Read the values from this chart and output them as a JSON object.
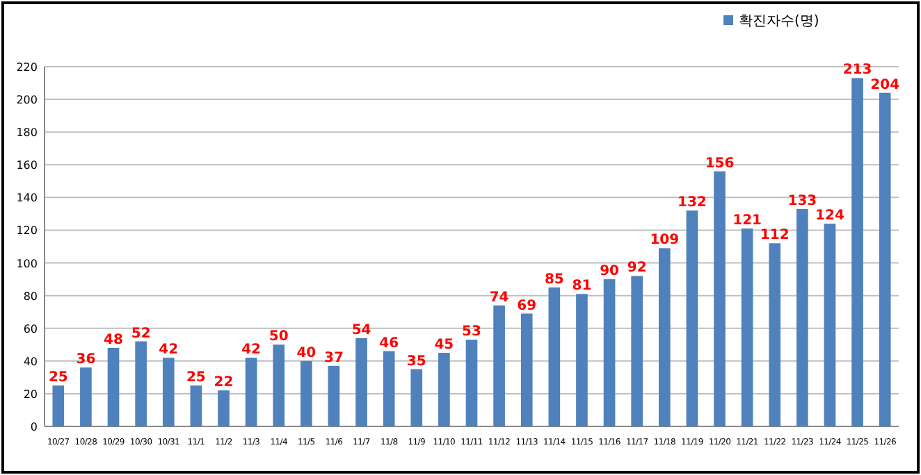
{
  "chart_data": {
    "type": "bar",
    "categories": [
      "10/27",
      "10/28",
      "10/29",
      "10/30",
      "10/31",
      "11/1",
      "11/2",
      "11/3",
      "11/4",
      "11/5",
      "11/6",
      "11/7",
      "11/8",
      "11/9",
      "11/10",
      "11/11",
      "11/12",
      "11/13",
      "11/14",
      "11/15",
      "11/16",
      "11/17",
      "11/18",
      "11/19",
      "11/20",
      "11/21",
      "11/22",
      "11/23",
      "11/24",
      "11/25",
      "11/26"
    ],
    "series": [
      {
        "name": "확진자수(명)",
        "color": "#4f81bd",
        "values": [
          25,
          36,
          48,
          52,
          42,
          25,
          22,
          42,
          50,
          40,
          37,
          54,
          46,
          35,
          45,
          53,
          74,
          69,
          85,
          81,
          90,
          92,
          109,
          132,
          156,
          121,
          112,
          133,
          124,
          213,
          204
        ]
      }
    ],
    "ylim": [
      0,
      220
    ],
    "yticks": [
      0,
      20,
      40,
      60,
      80,
      100,
      120,
      140,
      160,
      180,
      200,
      220
    ],
    "grid": "y",
    "legend": "top right",
    "data_labels": true
  }
}
